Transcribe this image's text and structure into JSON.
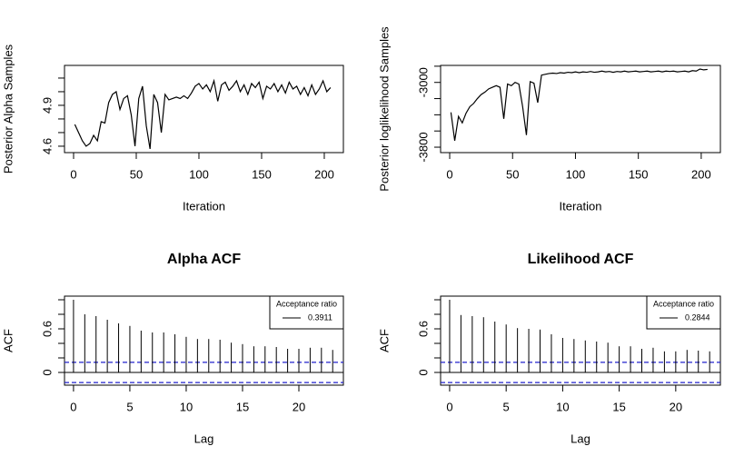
{
  "chart_data": [
    {
      "type": "line",
      "ylabel": "Posterior Alpha Samples",
      "xlabel": "Iteration",
      "color": "#000000",
      "xlim": [
        -7.24,
        215.24
      ],
      "xticks": [
        0,
        50,
        100,
        150,
        200
      ],
      "ylim": [
        4.553,
        5.193
      ],
      "yticks": [
        4.6,
        4.9
      ],
      "yminor_ticks": [
        4.7,
        4.8,
        5.0,
        5.1
      ],
      "x": [
        1,
        4,
        7,
        10,
        13,
        16,
        19,
        22,
        25,
        28,
        31,
        34,
        37,
        40,
        43,
        46,
        49,
        52,
        55,
        58,
        61,
        64,
        67,
        70,
        73,
        76,
        79,
        82,
        85,
        88,
        91,
        94,
        97,
        100,
        103,
        106,
        109,
        112,
        115,
        118,
        121,
        124,
        127,
        130,
        133,
        136,
        139,
        142,
        145,
        148,
        151,
        154,
        157,
        160,
        163,
        166,
        169,
        172,
        175,
        178,
        181,
        184,
        187,
        190,
        193,
        196,
        199,
        202,
        205
      ],
      "values": [
        4.76,
        4.7,
        4.64,
        4.6,
        4.62,
        4.68,
        4.64,
        4.78,
        4.77,
        4.92,
        4.98,
        5.0,
        4.87,
        4.95,
        4.97,
        4.83,
        4.6,
        4.95,
        5.04,
        4.75,
        4.58,
        4.98,
        4.92,
        4.7,
        4.98,
        4.94,
        4.95,
        4.96,
        4.95,
        4.97,
        4.95,
        4.99,
        5.04,
        5.06,
        5.02,
        5.05,
        5.0,
        5.08,
        4.93,
        5.05,
        5.07,
        5.01,
        5.04,
        5.08,
        5.0,
        5.05,
        4.98,
        5.06,
        5.03,
        5.07,
        4.95,
        5.04,
        5.02,
        5.06,
        5.0,
        5.05,
        4.99,
        5.07,
        5.02,
        5.04,
        4.98,
        5.03,
        4.97,
        5.05,
        4.98,
        5.02,
        5.08,
        5.0,
        5.03
      ]
    },
    {
      "type": "line",
      "ylabel": "Posterior loglikelihood Samples",
      "xlabel": "Iteration",
      "color": "#000000",
      "xlim": [
        -7.24,
        215.24
      ],
      "xticks": [
        0,
        50,
        100,
        150,
        200
      ],
      "ylim": [
        -3867,
        -2790
      ],
      "yticks": [
        -3000,
        -3800
      ],
      "yminor_ticks": [
        -3600,
        -3400,
        -3200,
        -2800
      ],
      "x": [
        1,
        4,
        7,
        10,
        13,
        16,
        19,
        22,
        25,
        28,
        31,
        34,
        37,
        40,
        43,
        46,
        49,
        52,
        55,
        58,
        61,
        64,
        67,
        70,
        73,
        76,
        79,
        82,
        85,
        88,
        91,
        94,
        97,
        100,
        103,
        106,
        109,
        112,
        115,
        118,
        121,
        124,
        127,
        130,
        133,
        136,
        139,
        142,
        145,
        148,
        151,
        154,
        157,
        160,
        163,
        166,
        169,
        172,
        175,
        178,
        181,
        184,
        187,
        190,
        193,
        196,
        199,
        202,
        205
      ],
      "values": [
        -3370,
        -3720,
        -3420,
        -3500,
        -3380,
        -3300,
        -3260,
        -3200,
        -3150,
        -3120,
        -3080,
        -3060,
        -3040,
        -3060,
        -3450,
        -3020,
        -3040,
        -3000,
        -3020,
        -3300,
        -3650,
        -2990,
        -3010,
        -3250,
        -2910,
        -2900,
        -2890,
        -2885,
        -2890,
        -2880,
        -2885,
        -2875,
        -2880,
        -2870,
        -2880,
        -2870,
        -2875,
        -2865,
        -2875,
        -2870,
        -2860,
        -2870,
        -2865,
        -2875,
        -2865,
        -2870,
        -2860,
        -2870,
        -2865,
        -2860,
        -2870,
        -2865,
        -2860,
        -2870,
        -2865,
        -2860,
        -2870,
        -2860,
        -2865,
        -2860,
        -2870,
        -2865,
        -2860,
        -2870,
        -2855,
        -2860,
        -2835,
        -2845,
        -2840
      ]
    },
    {
      "type": "acf",
      "title": "Alpha ACF",
      "ylabel": "ACF",
      "xlabel": "Lag",
      "color": "#000000",
      "ci_color": "#2222cc",
      "ci": 0.139,
      "xlim": [
        -0.8,
        23.95
      ],
      "xticks": [
        0,
        5,
        10,
        15,
        20
      ],
      "ylim": [
        -0.175,
        1.05
      ],
      "yticks": [
        0.0,
        0.6
      ],
      "yminor_ticks": [
        0.2,
        0.4,
        0.8,
        1.0
      ],
      "x": [
        0,
        1,
        2,
        3,
        4,
        5,
        6,
        7,
        8,
        9,
        10,
        11,
        12,
        13,
        14,
        15,
        16,
        17,
        18,
        19,
        20,
        21,
        22,
        23
      ],
      "values": [
        1.0,
        0.8,
        0.775,
        0.725,
        0.675,
        0.64,
        0.575,
        0.55,
        0.55,
        0.525,
        0.49,
        0.46,
        0.46,
        0.45,
        0.41,
        0.39,
        0.36,
        0.36,
        0.35,
        0.325,
        0.325,
        0.34,
        0.34,
        0.31
      ],
      "legend": {
        "position": "topright",
        "title": "Acceptance ratio",
        "labels": [
          "0.3911"
        ]
      }
    },
    {
      "type": "acf",
      "title": "Likelihood ACF",
      "ylabel": "ACF",
      "xlabel": "Lag",
      "color": "#000000",
      "ci_color": "#2222cc",
      "ci": 0.139,
      "xlim": [
        -0.8,
        23.95
      ],
      "xticks": [
        0,
        5,
        10,
        15,
        20
      ],
      "ylim": [
        -0.175,
        1.05
      ],
      "yticks": [
        0.0,
        0.6
      ],
      "yminor_ticks": [
        0.2,
        0.4,
        0.8,
        1.0
      ],
      "x": [
        0,
        1,
        2,
        3,
        4,
        5,
        6,
        7,
        8,
        9,
        10,
        11,
        12,
        13,
        14,
        15,
        16,
        17,
        18,
        19,
        20,
        21,
        22,
        23
      ],
      "values": [
        1.0,
        0.79,
        0.775,
        0.76,
        0.7,
        0.66,
        0.61,
        0.6,
        0.59,
        0.525,
        0.475,
        0.46,
        0.44,
        0.425,
        0.41,
        0.36,
        0.36,
        0.325,
        0.34,
        0.29,
        0.29,
        0.31,
        0.3,
        0.29
      ],
      "legend": {
        "position": "topright",
        "title": "Acceptance ratio",
        "labels": [
          "0.2844"
        ]
      }
    }
  ]
}
